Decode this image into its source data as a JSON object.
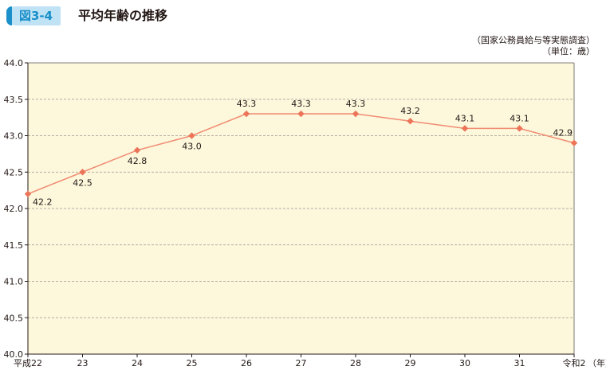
{
  "header": {
    "figure_label": "図3-4",
    "title": "平均年齢の推移",
    "source": "（国家公務員給与等実態調査）",
    "unit": "（単位：歳）"
  },
  "colors": {
    "plot_background": "#fdf7dc",
    "series_line": "#f08c72",
    "marker": "#ec7458",
    "grid": "#a0968c",
    "badge_bg": "#bfe3f5",
    "badge_text": "#1a8fc9"
  },
  "chart_data": {
    "type": "line",
    "title": "平均年齢の推移",
    "categories": [
      "平成22",
      "23",
      "24",
      "25",
      "26",
      "27",
      "28",
      "29",
      "30",
      "31",
      "令和2"
    ],
    "x_unit_label": "（年）",
    "values": [
      42.2,
      42.5,
      42.8,
      43.0,
      43.3,
      43.3,
      43.3,
      43.2,
      43.1,
      43.1,
      42.9
    ],
    "value_labels": [
      "42.2",
      "42.5",
      "42.8",
      "43.0",
      "43.3",
      "43.3",
      "43.3",
      "43.2",
      "43.1",
      "43.1",
      "42.9"
    ],
    "ylim": [
      40.0,
      44.0
    ],
    "yticks": [
      40.0,
      40.5,
      41.0,
      41.5,
      42.0,
      42.5,
      43.0,
      43.5,
      44.0
    ],
    "ytick_labels": [
      "40.0",
      "40.5",
      "41.0",
      "41.5",
      "42.0",
      "42.5",
      "43.0",
      "43.5",
      "44.0"
    ],
    "grid": "horizontal-dashed",
    "legend": "none"
  }
}
